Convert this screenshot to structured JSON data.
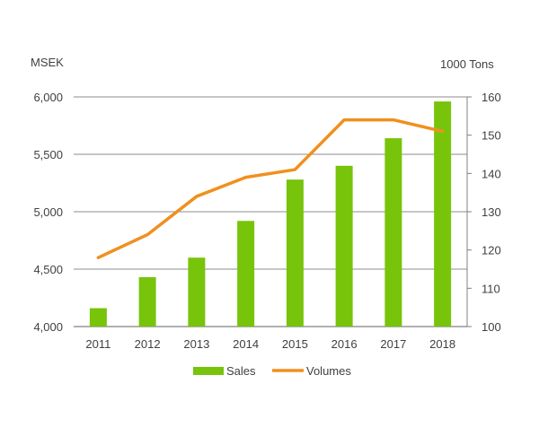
{
  "chart_data": {
    "type": "bar+line",
    "categories": [
      "2011",
      "2012",
      "2013",
      "2014",
      "2015",
      "2016",
      "2017",
      "2018"
    ],
    "series": [
      {
        "name": "Sales",
        "type": "bar",
        "axis": "left",
        "color": "#77c40a",
        "values": [
          4160,
          4430,
          4600,
          4920,
          5280,
          5400,
          5640,
          5960
        ]
      },
      {
        "name": "Volumes",
        "type": "line",
        "axis": "right",
        "color": "#f0901e",
        "values": [
          118,
          124,
          134,
          139,
          141,
          154,
          154,
          151
        ]
      }
    ],
    "y_left": {
      "label": "MSEK",
      "min": 4000,
      "max": 6000,
      "ticks": [
        4000,
        4500,
        5000,
        5500,
        6000
      ],
      "tick_labels": [
        "4,000",
        "4,500",
        "5,000",
        "5,500",
        "6,000"
      ]
    },
    "y_right": {
      "label": "1000 Tons",
      "min": 100,
      "max": 160,
      "ticks": [
        100,
        110,
        120,
        130,
        140,
        150,
        160
      ],
      "tick_labels": [
        "100",
        "110",
        "120",
        "130",
        "140",
        "150",
        "160"
      ]
    },
    "gridlines": true,
    "legend_position": "bottom"
  }
}
